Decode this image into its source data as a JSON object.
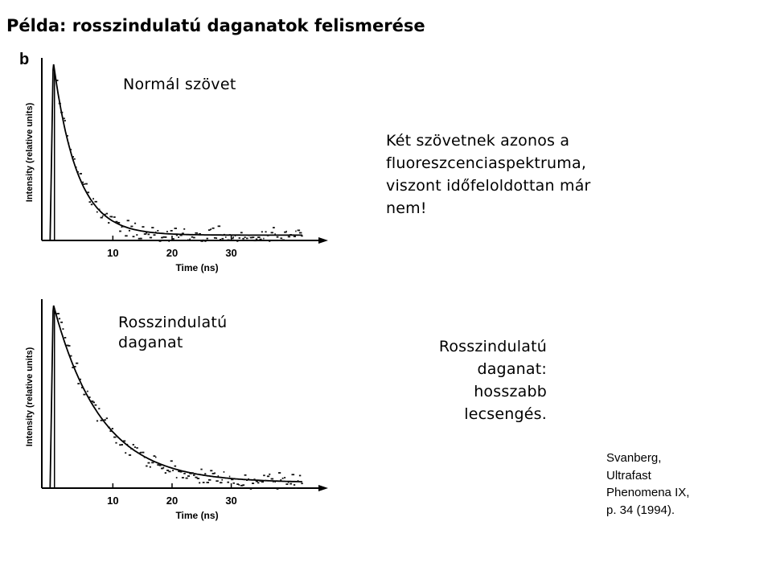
{
  "title": "Példa: rosszindulatú daganatok felismerése",
  "top_label": "Normál szövet",
  "bottom_label_lines": [
    "Rosszindulatú",
    "daganat"
  ],
  "right_top_lines": [
    "Két szövetnek azonos a",
    "fluoreszcenciaspektruma,",
    "viszont időfeloldottan már",
    "nem!"
  ],
  "right_bottom_lines": [
    "Rosszindulatú",
    "daganat:",
    "hosszabb",
    "lecsengés."
  ],
  "citation_lines": [
    "Svanberg,",
    "Ultrafast",
    "Phenomena IX,",
    "p. 34 (1994)."
  ],
  "chart_data": [
    {
      "type": "line",
      "panel_letter": "b",
      "xlabel": "Time (ns)",
      "ylabel": "Intensity (relative units)",
      "x_ticks": [
        10,
        20,
        30
      ],
      "xlim": [
        -2,
        45
      ],
      "ylim": [
        0,
        1
      ],
      "decay_tau_ns": 4,
      "grid": false
    },
    {
      "type": "line",
      "xlabel": "Time (ns)",
      "ylabel": "Intensity (relative units)",
      "x_ticks": [
        10,
        20,
        30
      ],
      "xlim": [
        -2,
        45
      ],
      "ylim": [
        0,
        1
      ],
      "decay_tau_ns": 8,
      "grid": false
    }
  ]
}
